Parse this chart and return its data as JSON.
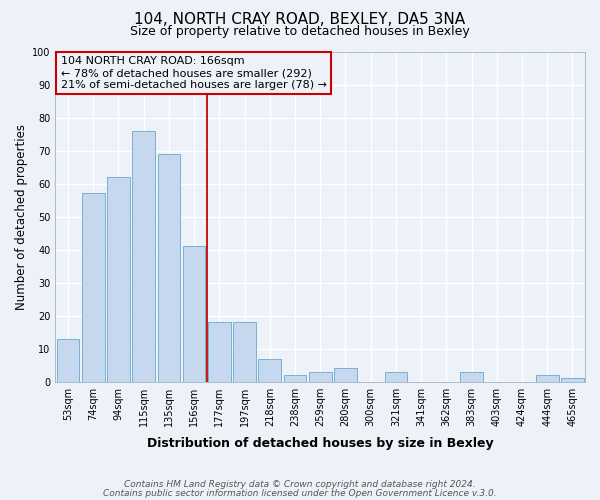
{
  "title": "104, NORTH CRAY ROAD, BEXLEY, DA5 3NA",
  "subtitle": "Size of property relative to detached houses in Bexley",
  "xlabel": "Distribution of detached houses by size in Bexley",
  "ylabel": "Number of detached properties",
  "bar_labels": [
    "53sqm",
    "74sqm",
    "94sqm",
    "115sqm",
    "135sqm",
    "156sqm",
    "177sqm",
    "197sqm",
    "218sqm",
    "238sqm",
    "259sqm",
    "280sqm",
    "300sqm",
    "321sqm",
    "341sqm",
    "362sqm",
    "383sqm",
    "403sqm",
    "424sqm",
    "444sqm",
    "465sqm"
  ],
  "bar_values": [
    13,
    57,
    62,
    76,
    69,
    41,
    18,
    18,
    7,
    2,
    3,
    4,
    0,
    3,
    0,
    0,
    3,
    0,
    0,
    2,
    1
  ],
  "bar_color": "#c5d8ee",
  "bar_edge_color": "#7aafd4",
  "vline_x_index": 5,
  "vline_color": "#cc0000",
  "ylim": [
    0,
    100
  ],
  "annotation_line1": "104 NORTH CRAY ROAD: 166sqm",
  "annotation_line2": "← 78% of detached houses are smaller (292)",
  "annotation_line3": "21% of semi-detached houses are larger (78) →",
  "annotation_box_color": "#cc0000",
  "footnote1": "Contains HM Land Registry data © Crown copyright and database right 2024.",
  "footnote2": "Contains public sector information licensed under the Open Government Licence v.3.0.",
  "background_color": "#edf2f9",
  "grid_color": "#ffffff",
  "title_fontsize": 11,
  "subtitle_fontsize": 9,
  "ylabel_fontsize": 8.5,
  "xlabel_fontsize": 9,
  "tick_fontsize": 7,
  "annotation_fontsize": 8,
  "footnote_fontsize": 6.5
}
